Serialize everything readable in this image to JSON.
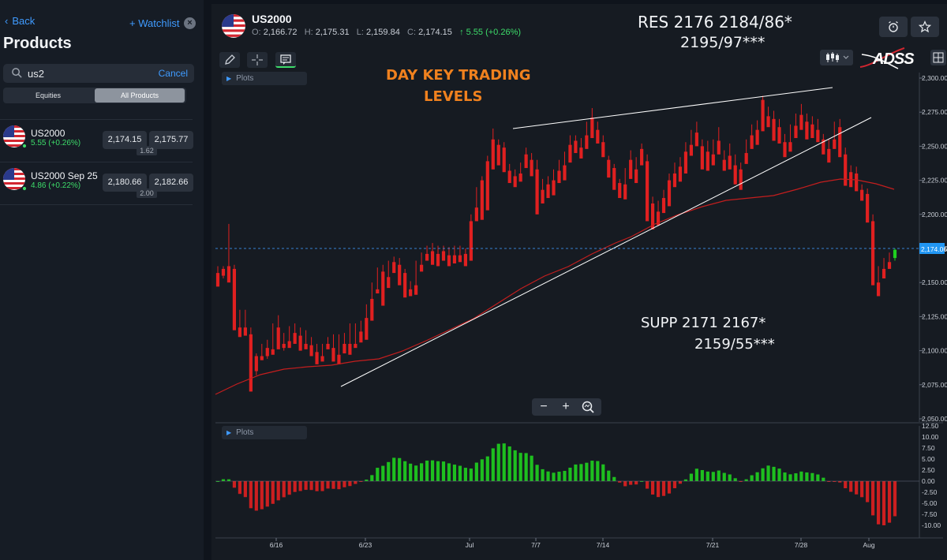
{
  "sidebar": {
    "back_label": "Back",
    "watchlist_label": "+ Watchlist",
    "title": "Products",
    "search": {
      "value": "us2",
      "cancel_label": "Cancel"
    },
    "segments": [
      "Equities",
      "All Products"
    ],
    "selected_segment": "All Products",
    "products": [
      {
        "name": "US2000",
        "change": "5.55 (+0.26%)",
        "sell": "2,174.15",
        "buy": "2,175.77",
        "spread": "1.62"
      },
      {
        "name": "US2000 Sep 25",
        "change": "4.86 (+0.22%)",
        "sell": "2,180.66",
        "buy": "2,182.66",
        "spread": "2.00"
      }
    ]
  },
  "header": {
    "symbol": "US2000",
    "open_label": "O:",
    "open": "2,166.72",
    "high_label": "H:",
    "high": "2,175.31",
    "low_label": "L:",
    "low": "2,159.84",
    "close_label": "C:",
    "close": "2,174.15",
    "change": "↑ 5.55 (+0.26%)",
    "brand": "ADSS"
  },
  "annotations": {
    "res_line1": "RES 2176      2184/86*",
    "res_line2": "2195/97***",
    "title_line1": "DAY KEY TRADING",
    "title_line2": "LEVELS",
    "supp_line1": "SUPP 2171      2167*",
    "supp_line2": "2159/55***"
  },
  "plots_label": "Plots",
  "colors": {
    "up": "#1fd11f",
    "down": "#e02020",
    "accent": "#3f9bff",
    "ma": "#c41e1e",
    "price_tag": "#2196f3",
    "title_orange": "#f0811e"
  },
  "chart_data": {
    "type": "candlestick",
    "instrument": "US2000",
    "last_price": "2,174.06",
    "ylim": [
      2050,
      2300
    ],
    "y_ticks": [
      "2,300.00",
      "2,275.00",
      "2,250.00",
      "2,225.00",
      "2,200.00",
      "2,175.00",
      "2,150.00",
      "2,125.00",
      "2,100.00",
      "2,075.00",
      "2,050.00"
    ],
    "x_ticks": [
      "6/16",
      "6/23",
      "Jul",
      "7/7",
      "7/14",
      "7/21",
      "7/28",
      "Aug"
    ],
    "candles_approx": [
      [
        2157,
        2162,
        2150,
        2147
      ],
      [
        2160,
        2162,
        2153,
        2155
      ],
      [
        2162,
        2193,
        2155,
        2150
      ],
      [
        2160,
        2163,
        2118,
        2115
      ],
      [
        2117,
        2130,
        2113,
        2110
      ],
      [
        2117,
        2130,
        2113,
        2111
      ],
      [
        2112,
        2117,
        2085,
        2070
      ],
      [
        2096,
        2098,
        2082,
        2085
      ],
      [
        2096,
        2105,
        2094,
        2093
      ],
      [
        2102,
        2108,
        2094,
        2096
      ],
      [
        2101,
        2120,
        2099,
        2097
      ],
      [
        2117,
        2126,
        2103,
        2101
      ],
      [
        2105,
        2113,
        2100,
        2102
      ],
      [
        2107,
        2118,
        2105,
        2102
      ],
      [
        2113,
        2120,
        2109,
        2105
      ],
      [
        2111,
        2117,
        2104,
        2100
      ],
      [
        2105,
        2115,
        2103,
        2101
      ],
      [
        2104,
        2110,
        2097,
        2096
      ],
      [
        2099,
        2105,
        2091,
        2090
      ],
      [
        2096,
        2105,
        2094,
        2092
      ],
      [
        2105,
        2110,
        2104,
        2101
      ],
      [
        2102,
        2112,
        2094,
        2092
      ],
      [
        2097,
        2112,
        2092,
        2090
      ],
      [
        2105,
        2113,
        2100,
        2098
      ],
      [
        2105,
        2120,
        2099,
        2097
      ],
      [
        2105,
        2120,
        2103,
        2102
      ],
      [
        2114,
        2122,
        2108,
        2106
      ],
      [
        2124,
        2134,
        2110,
        2108
      ],
      [
        2138,
        2150,
        2124,
        2122
      ],
      [
        2145,
        2161,
        2144,
        2142
      ],
      [
        2158,
        2163,
        2136,
        2133
      ],
      [
        2154,
        2166,
        2148,
        2146
      ],
      [
        2165,
        2169,
        2159,
        2157
      ],
      [
        2163,
        2168,
        2150,
        2148
      ],
      [
        2157,
        2160,
        2141,
        2139
      ],
      [
        2145,
        2151,
        2142,
        2140
      ],
      [
        2148,
        2166,
        2143,
        2141
      ],
      [
        2163,
        2172,
        2160,
        2158
      ],
      [
        2171,
        2177,
        2168,
        2166
      ],
      [
        2173,
        2179,
        2165,
        2163
      ],
      [
        2171,
        2177,
        2164,
        2162
      ],
      [
        2173,
        2177,
        2168,
        2166
      ],
      [
        2170,
        2176,
        2164,
        2162
      ],
      [
        2170,
        2177,
        2166,
        2164
      ],
      [
        2170,
        2177,
        2167,
        2165
      ],
      [
        2171,
        2175,
        2164,
        2162
      ],
      [
        2195,
        2200,
        2168,
        2166
      ],
      [
        2205,
        2220,
        2197,
        2195
      ],
      [
        2225,
        2228,
        2198,
        2196
      ],
      [
        2239,
        2243,
        2205,
        2203
      ],
      [
        2255,
        2263,
        2235,
        2233
      ],
      [
        2251,
        2255,
        2238,
        2236
      ],
      [
        2249,
        2253,
        2233,
        2231
      ],
      [
        2232,
        2237,
        2225,
        2223
      ],
      [
        2228,
        2233,
        2222,
        2220
      ],
      [
        2230,
        2238,
        2226,
        2224
      ],
      [
        2244,
        2249,
        2236,
        2234
      ],
      [
        2240,
        2245,
        2230,
        2228
      ],
      [
        2233,
        2240,
        2203,
        2200
      ],
      [
        2218,
        2226,
        2210,
        2208
      ],
      [
        2222,
        2228,
        2214,
        2212
      ],
      [
        2225,
        2233,
        2216,
        2214
      ],
      [
        2232,
        2240,
        2225,
        2223
      ],
      [
        2236,
        2246,
        2227,
        2225
      ],
      [
        2251,
        2258,
        2240,
        2238
      ],
      [
        2254,
        2258,
        2247,
        2245
      ],
      [
        2249,
        2256,
        2243,
        2241
      ],
      [
        2258,
        2268,
        2250,
        2248
      ],
      [
        2271,
        2278,
        2258,
        2256
      ],
      [
        2262,
        2268,
        2254,
        2252
      ],
      [
        2253,
        2258,
        2244,
        2242
      ],
      [
        2240,
        2243,
        2229,
        2227
      ],
      [
        2234,
        2237,
        2220,
        2218
      ],
      [
        2223,
        2226,
        2214,
        2212
      ],
      [
        2222,
        2234,
        2213,
        2211
      ],
      [
        2240,
        2247,
        2228,
        2226
      ],
      [
        2233,
        2242,
        2225,
        2223
      ],
      [
        2248,
        2252,
        2238,
        2236
      ],
      [
        2239,
        2244,
        2198,
        2195
      ],
      [
        2208,
        2213,
        2191,
        2189
      ],
      [
        2202,
        2210,
        2194,
        2192
      ],
      [
        2212,
        2218,
        2203,
        2201
      ],
      [
        2225,
        2230,
        2208,
        2206
      ],
      [
        2230,
        2238,
        2222,
        2220
      ],
      [
        2235,
        2242,
        2226,
        2224
      ],
      [
        2246,
        2253,
        2232,
        2230
      ],
      [
        2251,
        2262,
        2245,
        2243
      ],
      [
        2260,
        2268,
        2252,
        2250
      ],
      [
        2250,
        2255,
        2235,
        2233
      ],
      [
        2246,
        2254,
        2234,
        2232
      ],
      [
        2244,
        2255,
        2238,
        2236
      ],
      [
        2254,
        2264,
        2246,
        2244
      ],
      [
        2240,
        2247,
        2234,
        2232
      ],
      [
        2243,
        2252,
        2235,
        2233
      ],
      [
        2236,
        2244,
        2224,
        2222
      ],
      [
        2233,
        2238,
        2220,
        2218
      ],
      [
        2245,
        2255,
        2239,
        2237
      ],
      [
        2258,
        2266,
        2250,
        2248
      ],
      [
        2262,
        2269,
        2253,
        2251
      ],
      [
        2284,
        2287,
        2263,
        2261
      ],
      [
        2272,
        2279,
        2266,
        2264
      ],
      [
        2270,
        2276,
        2256,
        2254
      ],
      [
        2264,
        2270,
        2254,
        2252
      ],
      [
        2253,
        2259,
        2244,
        2242
      ],
      [
        2253,
        2266,
        2248,
        2246
      ],
      [
        2265,
        2274,
        2258,
        2256
      ],
      [
        2273,
        2281,
        2264,
        2262
      ],
      [
        2268,
        2274,
        2257,
        2255
      ],
      [
        2266,
        2272,
        2258,
        2256
      ],
      [
        2262,
        2270,
        2255,
        2253
      ],
      [
        2255,
        2259,
        2246,
        2244
      ],
      [
        2248,
        2255,
        2240,
        2238
      ],
      [
        2255,
        2268,
        2250,
        2248
      ],
      [
        2264,
        2270,
        2244,
        2242
      ],
      [
        2244,
        2249,
        2223,
        2221
      ],
      [
        2231,
        2236,
        2222,
        2220
      ],
      [
        2230,
        2235,
        2219,
        2217
      ],
      [
        2218,
        2222,
        2212,
        2210
      ],
      [
        2215,
        2219,
        2196,
        2194
      ],
      [
        2195,
        2200,
        2154,
        2148
      ],
      [
        2150,
        2162,
        2145,
        2140
      ],
      [
        2160,
        2168,
        2155,
        2153
      ],
      [
        2165,
        2172,
        2162,
        2160
      ],
      [
        2168,
        2175,
        2166,
        2174
      ]
    ],
    "moving_average": "red line rising from ~2,063 to ~2,225 then dipping to ~2,220",
    "trendlines": [
      "upper: 2,262 → 2,293",
      "lower rising: 2,074 → 2,269"
    ],
    "indicator": {
      "type": "histogram",
      "ylim": [
        -12.5,
        12.5
      ],
      "y_ticks": [
        "12.50",
        "10.00",
        "7.50",
        "5.00",
        "2.50",
        "0.00",
        "-2.50",
        "-5.00",
        "-7.50",
        "-10.00"
      ]
    }
  }
}
